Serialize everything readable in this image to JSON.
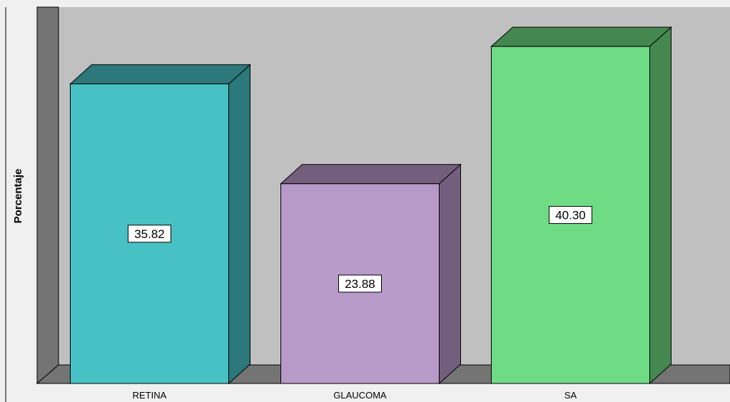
{
  "chart_data": {
    "type": "bar",
    "style": "3d",
    "title": "",
    "xlabel": "",
    "ylabel": "Porcentaje",
    "categories": [
      "RETINA",
      "GLAUCOMA",
      "SA"
    ],
    "values": [
      35.82,
      23.88,
      40.3
    ],
    "data_labels": [
      "35.82",
      "23.88",
      "40.30"
    ],
    "ylim": [
      0,
      45
    ],
    "grid": false,
    "legend": "none",
    "colors": {
      "bars_front": [
        "#48c1c4",
        "#b89ac9",
        "#6fdb85"
      ],
      "bars_top": [
        "#2c787a",
        "#735f7d",
        "#44884f"
      ],
      "bars_side": [
        "#2c787a",
        "#735f7d",
        "#44884f"
      ],
      "plot_background": "#c0c0c0",
      "wall_side": "#747474",
      "floor": "#747474",
      "frame_background": "#f0f0f0"
    }
  }
}
